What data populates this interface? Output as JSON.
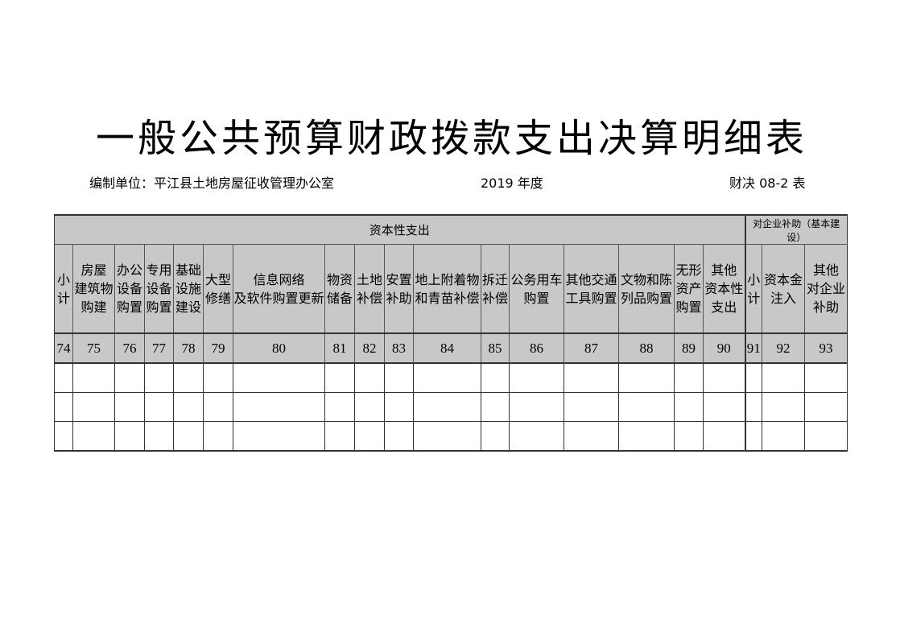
{
  "title": "一般公共预算财政拨款支出决算明细表",
  "unit_label": "编制单位：平江县土地房屋征收管理办公室",
  "year_label": "2019 年度",
  "form_code": "财决 08-2 表",
  "table": {
    "groups": [
      "资本性支出",
      "对企业补助（基本建设）"
    ],
    "columns": [
      {
        "label": "小\n计",
        "code": "74"
      },
      {
        "label": "房屋\n建筑物\n购建",
        "code": "75"
      },
      {
        "label": "办公\n设备\n购置",
        "code": "76"
      },
      {
        "label": "专用\n设备\n购置",
        "code": "77"
      },
      {
        "label": "基础\n设施\n建设",
        "code": "78"
      },
      {
        "label": "大型\n修缮",
        "code": "79"
      },
      {
        "label": "信息网络\n及软件购置更新",
        "code": "80"
      },
      {
        "label": "物资\n储备",
        "code": "81"
      },
      {
        "label": "土地\n补偿",
        "code": "82"
      },
      {
        "label": "安置\n补助",
        "code": "83"
      },
      {
        "label": "地上附着物\n和青苗补偿",
        "code": "84"
      },
      {
        "label": "拆迁\n补偿",
        "code": "85"
      },
      {
        "label": "公务用车\n购置",
        "code": "86"
      },
      {
        "label": "其他交通\n工具购置",
        "code": "87"
      },
      {
        "label": "文物和陈\n列品购置",
        "code": "88"
      },
      {
        "label": "无形\n资产\n购置",
        "code": "89"
      },
      {
        "label": "其他\n资本性\n支出",
        "code": "90"
      },
      {
        "label": "小\n计",
        "code": "91"
      },
      {
        "label": "资本金\n注入",
        "code": "92"
      },
      {
        "label": "其他\n对企业\n补助",
        "code": "93"
      }
    ],
    "rows": [
      [
        "",
        "",
        "",
        "",
        "",
        "",
        "",
        "",
        "",
        "",
        "",
        "",
        "",
        "",
        "",
        "",
        "",
        "",
        "",
        ""
      ],
      [
        "",
        "",
        "",
        "",
        "",
        "",
        "",
        "",
        "",
        "",
        "",
        "",
        "",
        "",
        "",
        "",
        "",
        "",
        "",
        ""
      ],
      [
        "",
        "",
        "",
        "",
        "",
        "",
        "",
        "",
        "",
        "",
        "",
        "",
        "",
        "",
        "",
        "",
        "",
        "",
        "",
        ""
      ]
    ]
  }
}
